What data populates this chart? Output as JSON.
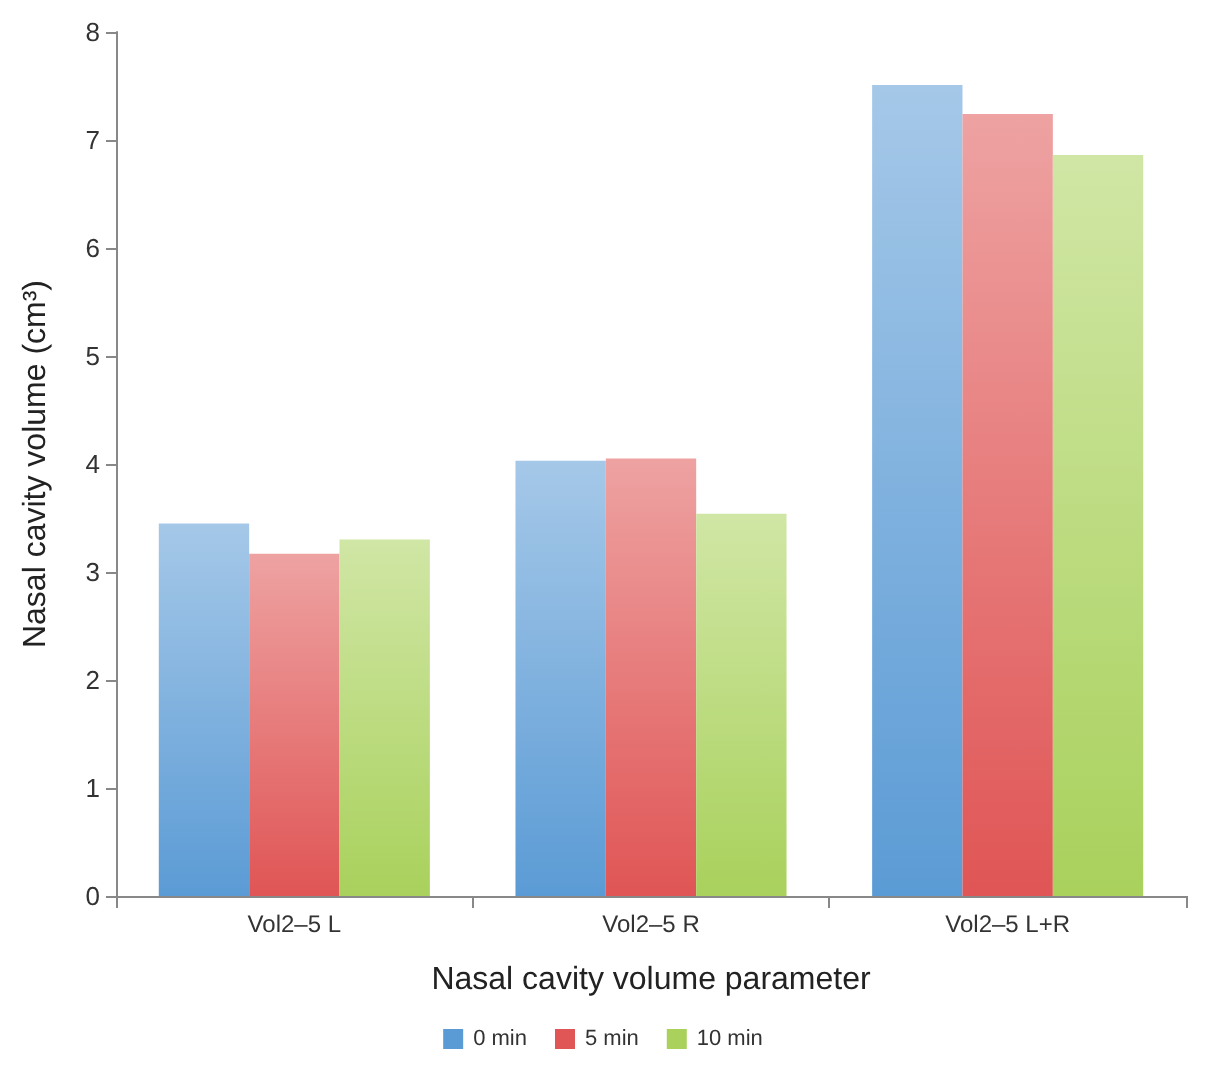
{
  "chart_data": {
    "type": "bar",
    "xlabel": "Nasal cavity volume parameter",
    "ylabel": "Nasal cavity volume (cm³)",
    "categories": [
      "Vol2–5 L",
      "Vol2–5 R",
      "Vol2–5 L+R"
    ],
    "series": [
      {
        "name": "0 min",
        "color": "#5b9bd5",
        "values": [
          3.45,
          4.03,
          7.51
        ]
      },
      {
        "name": "5 min",
        "color": "#e05555",
        "values": [
          3.17,
          4.05,
          7.24
        ]
      },
      {
        "name": "10 min",
        "color": "#a9d15c",
        "values": [
          3.3,
          3.54,
          6.86
        ]
      }
    ],
    "ylim": [
      0,
      8
    ],
    "yticks": [
      0,
      1,
      2,
      3,
      4,
      5,
      6,
      7,
      8
    ],
    "grid": false,
    "legend": "bottom"
  }
}
